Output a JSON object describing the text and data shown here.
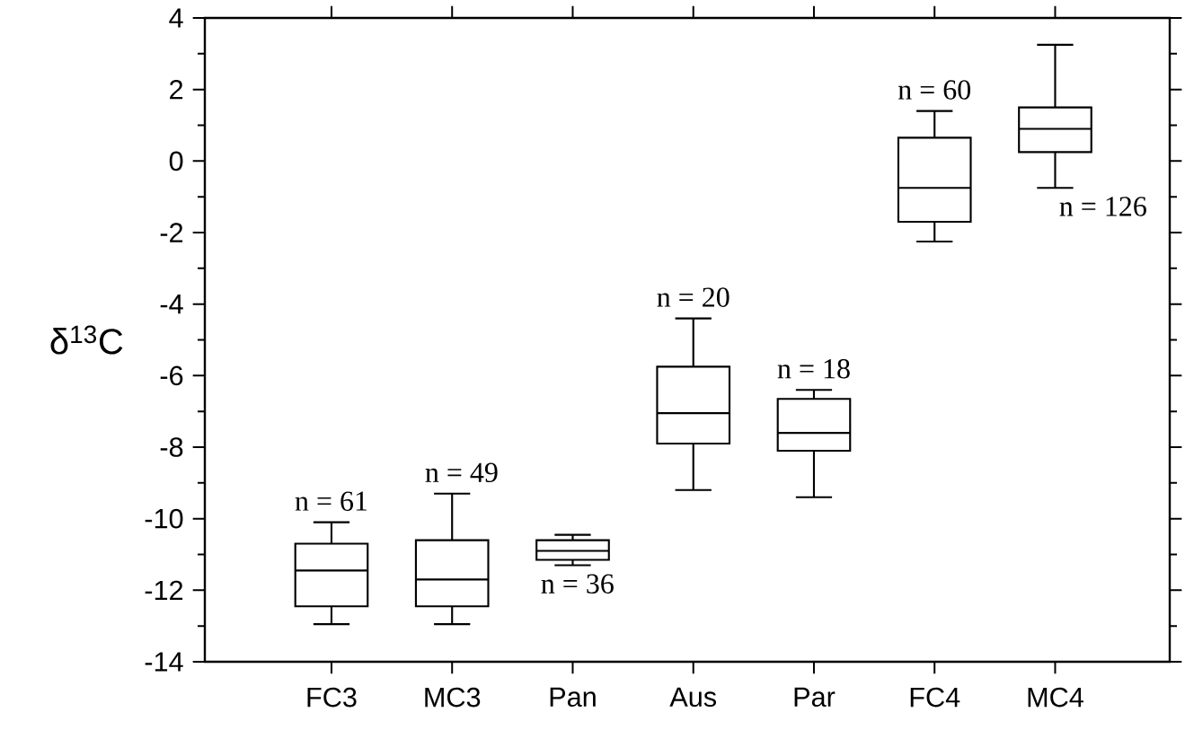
{
  "chart_data": {
    "type": "box",
    "ylabel": "δ$^{13}$C",
    "categories": [
      "FC3",
      "MC3",
      "Pan",
      "Aus",
      "Par",
      "FC4",
      "MC4"
    ],
    "boxes": [
      {
        "low": -12.95,
        "q1": -12.45,
        "median": -11.45,
        "q3": -10.7,
        "high": -10.1
      },
      {
        "low": -12.95,
        "q1": -12.45,
        "median": -11.7,
        "q3": -10.6,
        "high": -9.3
      },
      {
        "low": -11.3,
        "q1": -11.15,
        "median": -10.9,
        "q3": -10.6,
        "high": -10.45
      },
      {
        "low": -9.2,
        "q1": -7.9,
        "median": -7.05,
        "q3": -5.75,
        "high": -4.4
      },
      {
        "low": -9.4,
        "q1": -8.1,
        "median": -7.6,
        "q3": -6.65,
        "high": -6.4
      },
      {
        "low": -2.25,
        "q1": -1.7,
        "median": -0.75,
        "q3": 0.65,
        "high": 1.4
      },
      {
        "low": -0.75,
        "q1": 0.25,
        "median": 0.9,
        "q3": 1.5,
        "high": 3.25
      }
    ],
    "annotations": [
      "n = 61",
      "n = 49",
      "n = 36",
      "n = 20",
      "n = 18",
      "n = 60",
      "n = 126"
    ],
    "ylim": [
      -14,
      4
    ],
    "yticks": [
      -14,
      -12,
      -10,
      -8,
      -6,
      -4,
      -2,
      0,
      2,
      4
    ]
  }
}
